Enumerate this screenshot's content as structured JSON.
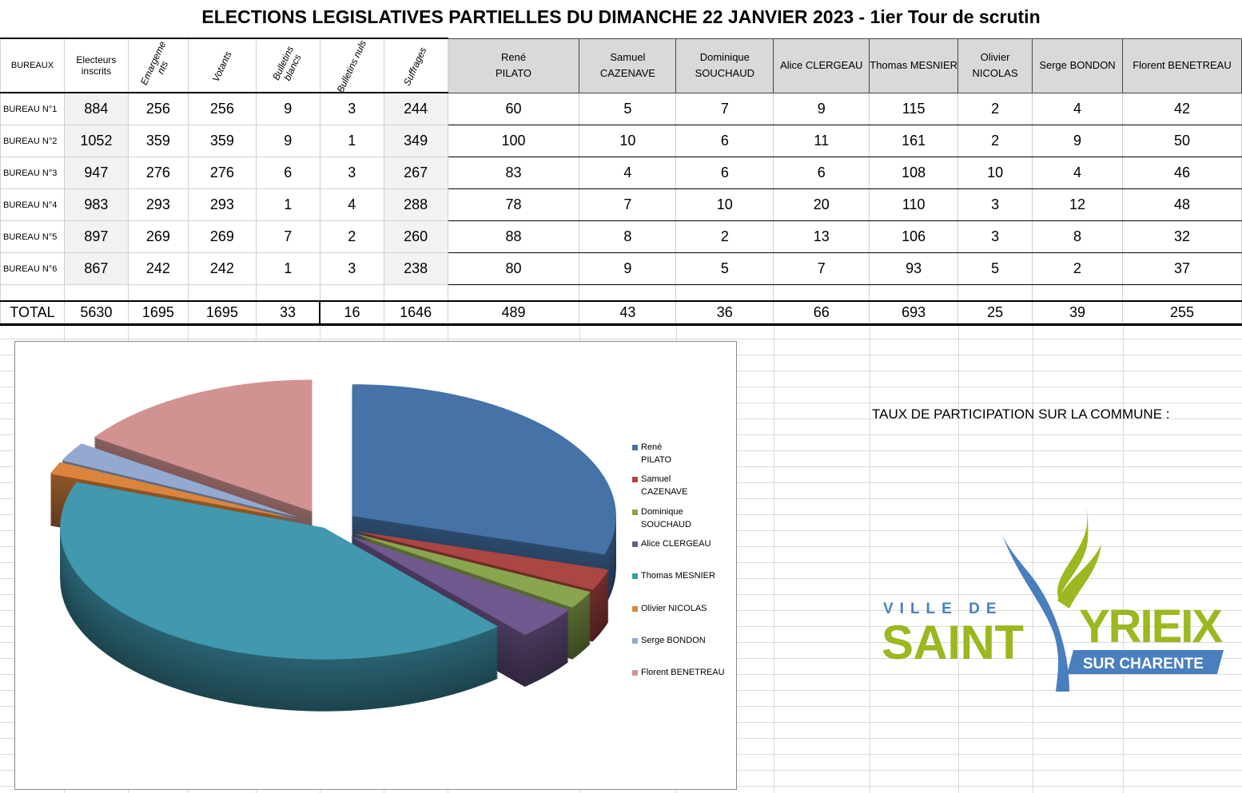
{
  "title": "ELECTIONS LEGISLATIVES PARTIELLES  DU DIMANCHE 22 JANVIER 2023  - 1ier Tour de scrutin",
  "headers": {
    "bureaux": "BUREAUX",
    "inscrits": "Electeurs inscrits",
    "emargements": "Emargeme nts",
    "votants": "Votants",
    "blancs": "Bulletins blancs",
    "nuls": "Bulletins nuls",
    "suffrages": "Suffrages"
  },
  "candidates": [
    "René\nPILATO",
    "Samuel\nCAZENAVE",
    "Dominique\nSOUCHAUD",
    "Alice CLERGEAU",
    "Thomas MESNIER",
    "Olivier\nNICOLAS",
    "Serge BONDON",
    "Florent BENETREAU"
  ],
  "rows": [
    {
      "label": "BUREAU N°1",
      "inscrits": "884",
      "emarg": "256",
      "votants": "256",
      "blancs": "9",
      "nuls": "3",
      "suffrages": "244",
      "votes": [
        "60",
        "5",
        "7",
        "9",
        "115",
        "2",
        "4",
        "42"
      ]
    },
    {
      "label": "BUREAU N°2",
      "inscrits": "1052",
      "emarg": "359",
      "votants": "359",
      "blancs": "9",
      "nuls": "1",
      "suffrages": "349",
      "votes": [
        "100",
        "10",
        "6",
        "11",
        "161",
        "2",
        "9",
        "50"
      ]
    },
    {
      "label": "BUREAU N°3",
      "inscrits": "947",
      "emarg": "276",
      "votants": "276",
      "blancs": "6",
      "nuls": "3",
      "suffrages": "267",
      "votes": [
        "83",
        "4",
        "6",
        "6",
        "108",
        "10",
        "4",
        "46"
      ]
    },
    {
      "label": "BUREAU N°4",
      "inscrits": "983",
      "emarg": "293",
      "votants": "293",
      "blancs": "1",
      "nuls": "4",
      "suffrages": "288",
      "votes": [
        "78",
        "7",
        "10",
        "20",
        "110",
        "3",
        "12",
        "48"
      ]
    },
    {
      "label": "BUREAU N°5",
      "inscrits": "897",
      "emarg": "269",
      "votants": "269",
      "blancs": "7",
      "nuls": "2",
      "suffrages": "260",
      "votes": [
        "88",
        "8",
        "2",
        "13",
        "106",
        "3",
        "8",
        "32"
      ]
    },
    {
      "label": "BUREAU N°6",
      "inscrits": "867",
      "emarg": "242",
      "votants": "242",
      "blancs": "1",
      "nuls": "3",
      "suffrages": "238",
      "votes": [
        "80",
        "9",
        "5",
        "7",
        "93",
        "5",
        "2",
        "37"
      ]
    }
  ],
  "total": {
    "label": "TOTAL",
    "inscrits": "5630",
    "emarg": "1695",
    "votants": "1695",
    "blancs": "33",
    "nuls": "16",
    "suffrages": "1646",
    "votes": [
      "489",
      "43",
      "36",
      "66",
      "693",
      "25",
      "39",
      "255"
    ]
  },
  "chart_data": {
    "type": "pie",
    "style": "3d-exploded",
    "legend_position": "right",
    "categories": [
      "René\nPILATO",
      "Samuel\nCAZENAVE",
      "Dominique\nSOUCHAUD",
      "Alice CLERGEAU",
      "Thomas MESNIER",
      "Olivier NICOLAS",
      "Serge BONDON",
      "Florent BENETREAU"
    ],
    "values": [
      489,
      43,
      36,
      66,
      693,
      25,
      39,
      255
    ],
    "colors": [
      "#4572A7",
      "#AA4643",
      "#89A54E",
      "#71588F",
      "#4198AF",
      "#DB843D",
      "#93A9CF",
      "#D19392"
    ]
  },
  "taux_label": "TAUX DE PARTICIPATION SUR LA COMMUNE :",
  "logo": {
    "line1": "VILLE DE",
    "line2": "SAINT",
    "line3": "YRIEIX",
    "line4": "SUR CHARENTE"
  }
}
